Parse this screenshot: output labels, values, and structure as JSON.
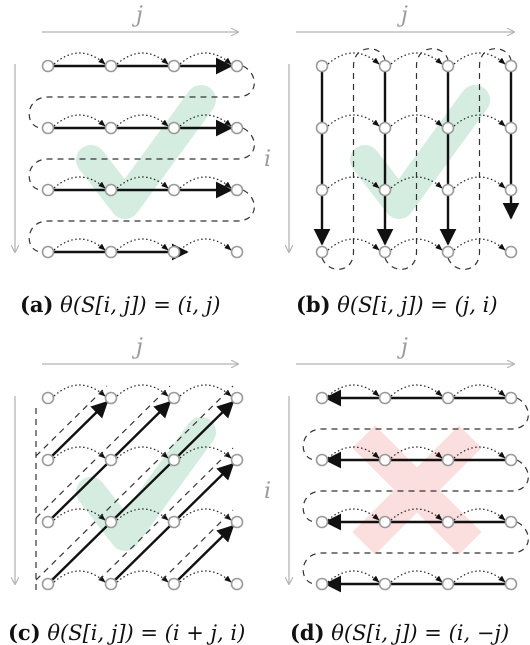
{
  "figure": {
    "axis_j": "j",
    "axis_i": "i",
    "panels": [
      {
        "id": "a",
        "tag": "(a)",
        "formula": "θ(S[i, j]) = (i, j)",
        "order": "row-major",
        "mark": "check"
      },
      {
        "id": "b",
        "tag": "(b)",
        "formula": "θ(S[i, j]) = (j, i)",
        "order": "column-major",
        "mark": "check"
      },
      {
        "id": "c",
        "tag": "(c)",
        "formula": "θ(S[i, j]) = (i + j, i)",
        "order": "anti-diagonal",
        "mark": "check"
      },
      {
        "id": "d",
        "tag": "(d)",
        "formula": "θ(S[i, j]) = (i, −j)",
        "order": "row-reversed",
        "mark": "cross"
      }
    ]
  },
  "colors": {
    "check": "#cdeadb",
    "cross": "#fbdada",
    "node": "#9a9a9a",
    "axis": "#b5b5b5",
    "arrow": "#111111"
  }
}
